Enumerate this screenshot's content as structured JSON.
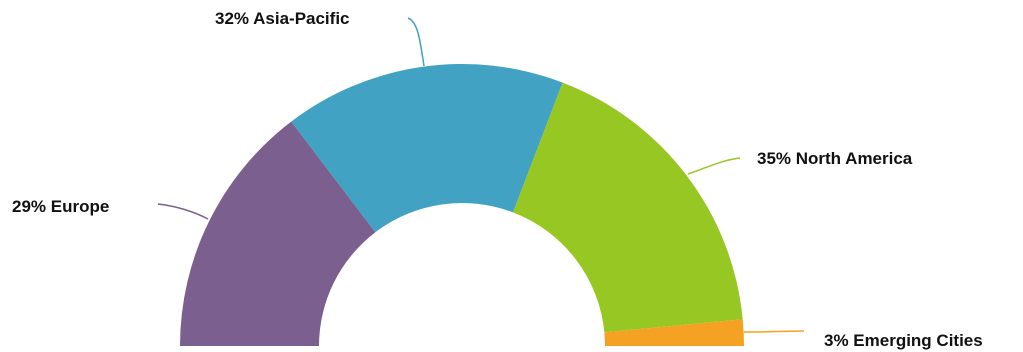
{
  "chart_data": {
    "type": "pie",
    "variant": "semi-donut",
    "title": "",
    "slices": [
      {
        "name": "Europe",
        "value": 29,
        "label": "29% Europe",
        "color": "#7B5F8E"
      },
      {
        "name": "Asia-Pacific",
        "value": 32,
        "label": "32% Asia-Pacific",
        "color": "#41A2C4"
      },
      {
        "name": "North America",
        "value": 35,
        "label": "35% North America",
        "color": "#97C723"
      },
      {
        "name": "Emerging Cities",
        "value": 3,
        "label": "3% Emerging Cities",
        "color": "#F4A124"
      }
    ],
    "legend": "none",
    "labels": "outside-with-leader-lines"
  }
}
